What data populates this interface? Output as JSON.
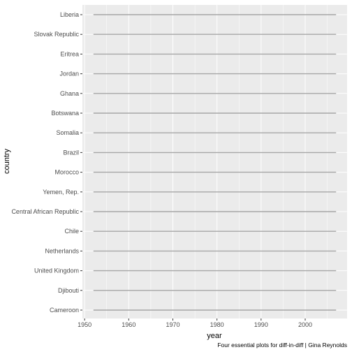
{
  "chart_data": {
    "type": "line",
    "xlabel": "year",
    "ylabel": "country",
    "caption": "Four essential plots for diff-in-diff | Gina Reynolds",
    "xlim": [
      1949.5,
      2009.5
    ],
    "x_ticks": [
      1950,
      1960,
      1970,
      1980,
      1990,
      2000
    ],
    "categories_top_to_bottom": [
      "Liberia",
      "Slovak Republic",
      "Eritrea",
      "Jordan",
      "Ghana",
      "Botswana",
      "Somalia",
      "Brazil",
      "Morocco",
      "Yemen, Rep.",
      "Central African Republic",
      "Chile",
      "Netherlands",
      "United Kingdom",
      "Djibouti",
      "Cameroon"
    ],
    "segments": [
      {
        "country": "Liberia",
        "x_start": 1952,
        "x_end": 2007
      },
      {
        "country": "Slovak Republic",
        "x_start": 1952,
        "x_end": 2007
      },
      {
        "country": "Eritrea",
        "x_start": 1952,
        "x_end": 2007
      },
      {
        "country": "Jordan",
        "x_start": 1952,
        "x_end": 2007
      },
      {
        "country": "Ghana",
        "x_start": 1952,
        "x_end": 2007
      },
      {
        "country": "Botswana",
        "x_start": 1952,
        "x_end": 2007
      },
      {
        "country": "Somalia",
        "x_start": 1952,
        "x_end": 2007
      },
      {
        "country": "Brazil",
        "x_start": 1952,
        "x_end": 2007
      },
      {
        "country": "Morocco",
        "x_start": 1952,
        "x_end": 2007
      },
      {
        "country": "Yemen, Rep.",
        "x_start": 1952,
        "x_end": 2007
      },
      {
        "country": "Central African Republic",
        "x_start": 1952,
        "x_end": 2007
      },
      {
        "country": "Chile",
        "x_start": 1952,
        "x_end": 2007
      },
      {
        "country": "Netherlands",
        "x_start": 1952,
        "x_end": 2007
      },
      {
        "country": "United Kingdom",
        "x_start": 1952,
        "x_end": 2007
      },
      {
        "country": "Djibouti",
        "x_start": 1952,
        "x_end": 2007
      },
      {
        "country": "Cameroon",
        "x_start": 1952,
        "x_end": 2007
      }
    ],
    "grid": true,
    "colors": {
      "panel_background": "#ebebeb",
      "grid_major": "#ffffff",
      "line": "#a6a6a6"
    }
  }
}
